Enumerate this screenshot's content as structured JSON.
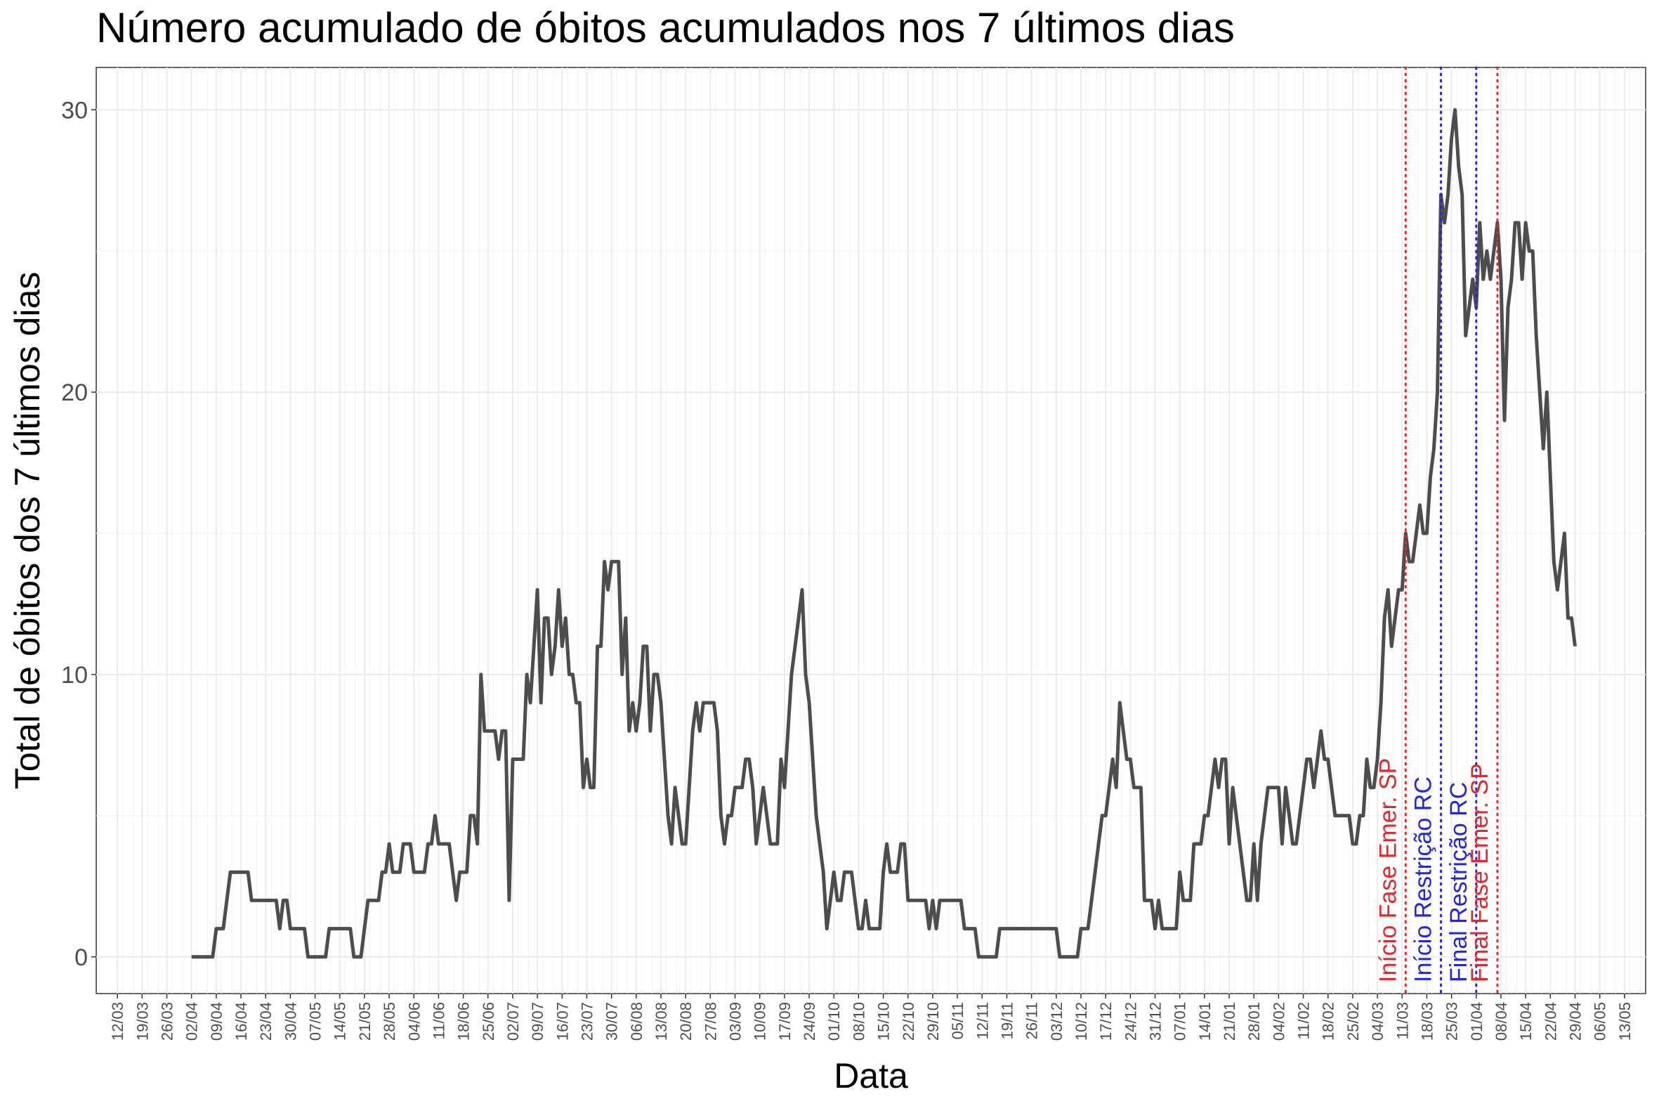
{
  "chart_data": {
    "type": "line",
    "title": "Número acumulado de óbitos acumulados nos 7 últimos dias",
    "xlabel": "Data",
    "ylabel": "Total de óbitos dos 7 últimos dias",
    "ylim": [
      -1.3,
      31.5
    ],
    "yticks": [
      0,
      10,
      20,
      30
    ],
    "x_tick_labels": [
      "12/03",
      "19/03",
      "26/03",
      "02/04",
      "09/04",
      "16/04",
      "23/04",
      "30/04",
      "07/05",
      "14/05",
      "21/05",
      "28/05",
      "04/06",
      "11/06",
      "18/06",
      "25/06",
      "02/07",
      "09/07",
      "16/07",
      "23/07",
      "30/07",
      "06/08",
      "13/08",
      "20/08",
      "27/08",
      "03/09",
      "10/09",
      "17/09",
      "24/09",
      "01/10",
      "08/10",
      "15/10",
      "22/10",
      "29/10",
      "05/11",
      "12/11",
      "19/11",
      "26/11",
      "03/12",
      "10/12",
      "17/12",
      "24/12",
      "31/12",
      "07/01",
      "14/01",
      "21/01",
      "28/01",
      "04/02",
      "11/02",
      "18/02",
      "25/02",
      "04/03",
      "11/03",
      "18/03",
      "25/03",
      "01/04",
      "08/04",
      "15/04",
      "22/04",
      "29/04",
      "06/05",
      "13/05"
    ],
    "grid": true,
    "series": [
      {
        "color": "#4d4d4d",
        "x_day_index_start": 21,
        "values": [
          0,
          0,
          0,
          0,
          0,
          0,
          0,
          1,
          1,
          1,
          2,
          3,
          3,
          3,
          3,
          3,
          3,
          2,
          2,
          2,
          2,
          2,
          2,
          2,
          2,
          1,
          2,
          2,
          1,
          1,
          1,
          1,
          1,
          0,
          0,
          0,
          0,
          0,
          0,
          1,
          1,
          1,
          1,
          1,
          1,
          1,
          0,
          0,
          0,
          1,
          2,
          2,
          2,
          2,
          3,
          3,
          4,
          3,
          3,
          3,
          4,
          4,
          4,
          3,
          3,
          3,
          3,
          4,
          4,
          5,
          4,
          4,
          4,
          4,
          3,
          2,
          3,
          3,
          3,
          5,
          5,
          4,
          10,
          8,
          8,
          8,
          8,
          7,
          8,
          8,
          2,
          7,
          7,
          7,
          7,
          10,
          9,
          11,
          13,
          9,
          12,
          12,
          10,
          11,
          13,
          11,
          12,
          10,
          10,
          9,
          9,
          6,
          7,
          6,
          6,
          11,
          11,
          14,
          13,
          14,
          14,
          14,
          10,
          12,
          8,
          9,
          8,
          9,
          11,
          11,
          8,
          10,
          10,
          9,
          7,
          5,
          4,
          6,
          5,
          4,
          4,
          6,
          8,
          9,
          8,
          9,
          9,
          9,
          9,
          8,
          5,
          4,
          5,
          5,
          6,
          6,
          6,
          7,
          7,
          6,
          4,
          5,
          6,
          5,
          4,
          4,
          4,
          7,
          6,
          8,
          10,
          11,
          12,
          13,
          10,
          9,
          7,
          5,
          4,
          3,
          1,
          2,
          3,
          2,
          2,
          3,
          3,
          3,
          2,
          1,
          1,
          2,
          1,
          1,
          1,
          1,
          3,
          4,
          3,
          3,
          3,
          4,
          4,
          2,
          2,
          2,
          2,
          2,
          2,
          1,
          2,
          1,
          2,
          2,
          2,
          2,
          2,
          2,
          2,
          1,
          1,
          1,
          1,
          0,
          0,
          0,
          0,
          0,
          0,
          1,
          1,
          1,
          1,
          1,
          1,
          1,
          1,
          1,
          1,
          1,
          1,
          1,
          1,
          1,
          1,
          1,
          0,
          0,
          0,
          0,
          0,
          0,
          1,
          1,
          1,
          2,
          3,
          4,
          5,
          5,
          6,
          7,
          6,
          9,
          8,
          7,
          7,
          6,
          6,
          6,
          2,
          2,
          2,
          1,
          2,
          1,
          1,
          1,
          1,
          1,
          3,
          2,
          2,
          2,
          4,
          4,
          4,
          5,
          5,
          6,
          7,
          6,
          7,
          7,
          4,
          6,
          5,
          4,
          3,
          2,
          2,
          4,
          2,
          4,
          5,
          6,
          6,
          6,
          6,
          4,
          6,
          5,
          4,
          4,
          5,
          6,
          7,
          7,
          6,
          7,
          8,
          7,
          7,
          6,
          5,
          5,
          5,
          5,
          5,
          4,
          4,
          5,
          5,
          7,
          6,
          6,
          7,
          9,
          12,
          13,
          11,
          12,
          13,
          13,
          15,
          14,
          14,
          15,
          16,
          15,
          15,
          17,
          18,
          20,
          27,
          26,
          27,
          29,
          30,
          28,
          27,
          22,
          23,
          24,
          23,
          26,
          24,
          25,
          24,
          25,
          26,
          24,
          19,
          23,
          24,
          26,
          26,
          24,
          26,
          25,
          25,
          22,
          20,
          18,
          20,
          17,
          14,
          13,
          14,
          15,
          12,
          12,
          11
        ]
      }
    ],
    "vertical_lines": [
      {
        "label": "Início Fase Emer. SP",
        "color": "#e8242a",
        "style": "dotted",
        "x_day_index": 365
      },
      {
        "label": "Início Restrição RC",
        "color": "#2424e8",
        "style": "dotted",
        "x_day_index": 375
      },
      {
        "label": "Final Restrição RC",
        "color": "#2424e8",
        "style": "dotted",
        "x_day_index": 385
      },
      {
        "label": "Final Fase Emer. SP",
        "color": "#e8242a",
        "style": "dotted",
        "x_day_index": 391
      }
    ],
    "x_domain_day_index": [
      -6,
      433
    ]
  }
}
